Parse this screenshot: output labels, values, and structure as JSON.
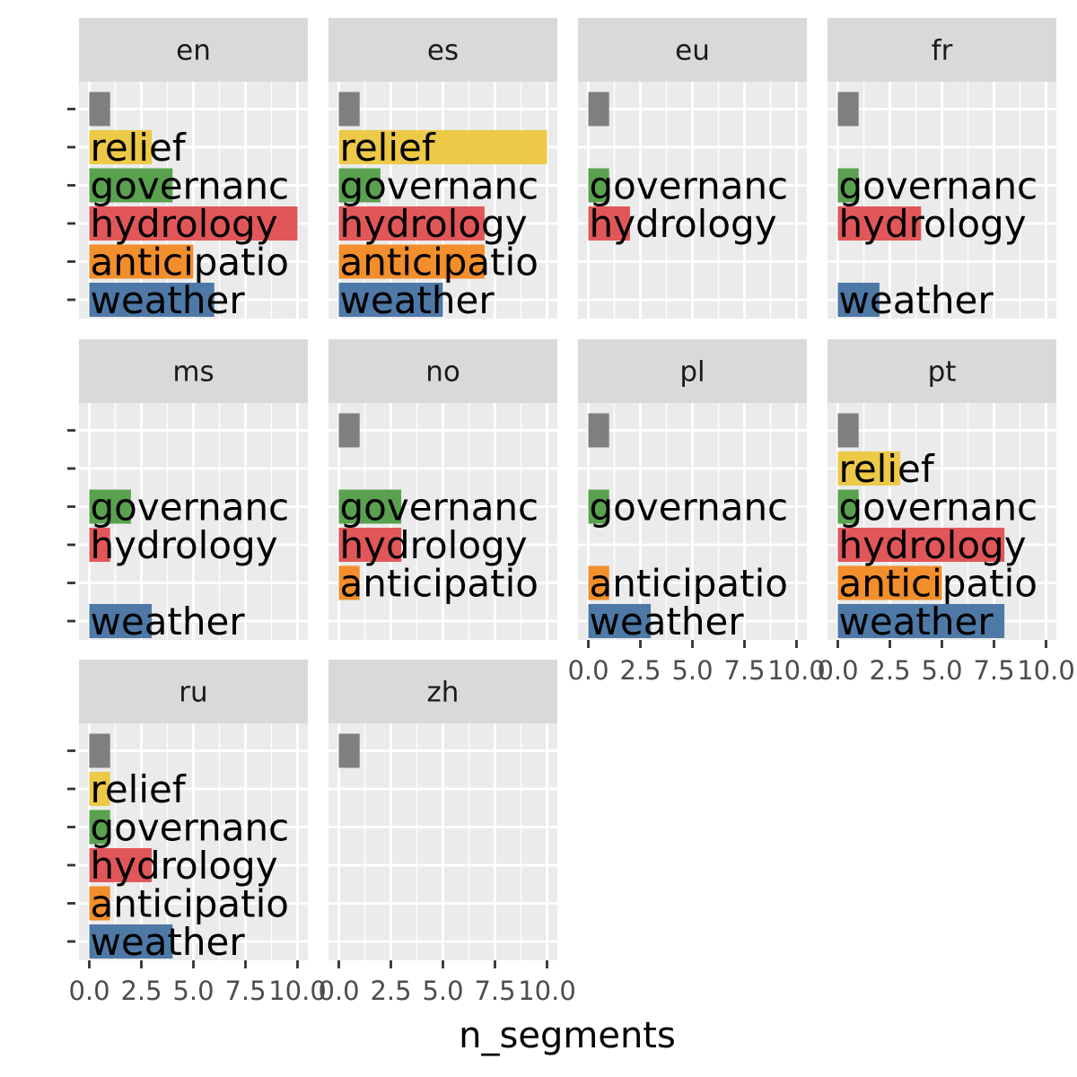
{
  "chart_data": {
    "type": "bar",
    "orientation": "horizontal",
    "xlabel": "n_segments",
    "ylabel": "",
    "xlim": [
      0,
      10
    ],
    "x_ticks": [
      0,
      2.5,
      5,
      7.5,
      10
    ],
    "x_tick_labels": [
      "0.0",
      "2.5",
      "5.0",
      "7.5",
      "10.0"
    ],
    "y_tick_label": "-",
    "grid": true,
    "categories": [
      "",
      "relief",
      "governance",
      "hydrology",
      "anticipation",
      "weather"
    ],
    "category_label_display": [
      "",
      "relief",
      "governanc",
      "hydrology",
      "anticipatio",
      "weather"
    ],
    "category_colors": {
      "": "#7f7f7f",
      "relief": "#edc948",
      "governance": "#59a14f",
      "hydrology": "#e15759",
      "anticipation": "#f28e2b",
      "weather": "#4e79a7"
    },
    "facets": [
      {
        "name": "en",
        "values": [
          1,
          3,
          4,
          10,
          5,
          6
        ]
      },
      {
        "name": "es",
        "values": [
          1,
          10,
          2,
          7,
          7,
          5
        ]
      },
      {
        "name": "eu",
        "values": [
          1,
          0,
          1,
          2,
          0,
          0
        ]
      },
      {
        "name": "fr",
        "values": [
          1,
          0,
          1,
          4,
          0,
          2
        ]
      },
      {
        "name": "ms",
        "values": [
          0,
          0,
          2,
          1,
          0,
          3
        ]
      },
      {
        "name": "no",
        "values": [
          1,
          0,
          3,
          3,
          1,
          0
        ]
      },
      {
        "name": "pl",
        "values": [
          1,
          0,
          1,
          0,
          1,
          3
        ]
      },
      {
        "name": "pt",
        "values": [
          1,
          3,
          1,
          8,
          5,
          8
        ]
      },
      {
        "name": "ru",
        "values": [
          1,
          1,
          1,
          3,
          1,
          4
        ]
      },
      {
        "name": "zh",
        "values": [
          1,
          0,
          0,
          0,
          0,
          0
        ]
      }
    ]
  }
}
